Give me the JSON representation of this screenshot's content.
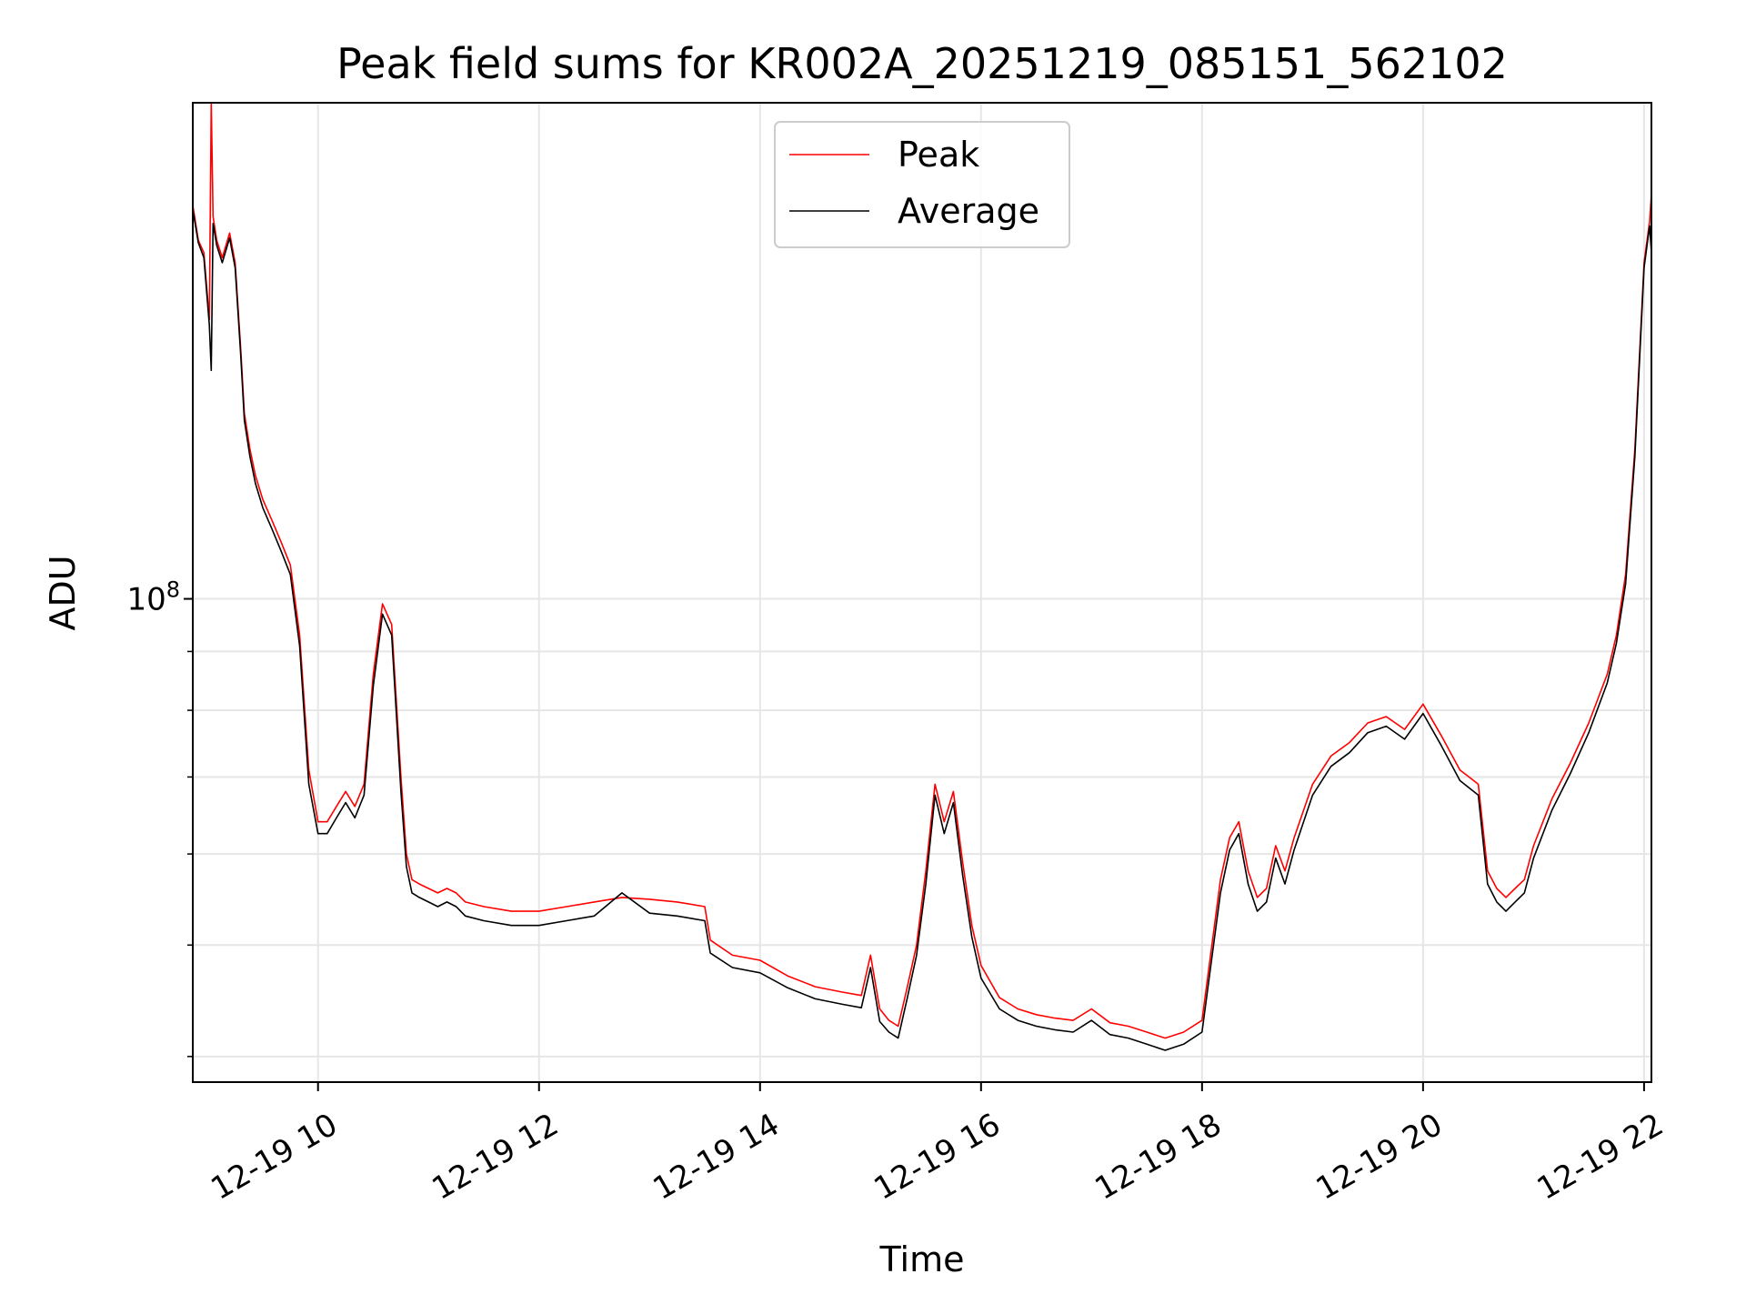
{
  "chart_data": {
    "type": "line",
    "title": "Peak field sums for KR002A_20251219_085151_562102",
    "xlabel": "Time",
    "ylabel": "ADU",
    "x_axis": {
      "kind": "time",
      "range": [
        "12-19 08:52",
        "12-19 22:04"
      ],
      "tick_labels": [
        "12-19 10",
        "12-19 12",
        "12-19 14",
        "12-19 16",
        "12-19 18",
        "12-19 20",
        "12-19 22"
      ],
      "tick_values": [
        "12-19 10:00",
        "12-19 12:00",
        "12-19 14:00",
        "12-19 16:00",
        "12-19 18:00",
        "12-19 20:00",
        "12-19 22:00"
      ],
      "tick_rotation_deg": 30
    },
    "y_axis": {
      "scale": "log",
      "range": [
        38000000,
        270000000
      ],
      "major_tick_labels": [
        {
          "value": 100000000,
          "base": "10",
          "exponent": "8"
        }
      ],
      "minor_ticks": [
        40000000,
        50000000,
        60000000,
        70000000,
        80000000,
        90000000
      ]
    },
    "grid": true,
    "legend_position": "upper center",
    "legend": [
      "Peak",
      "Average"
    ],
    "x": [
      "12-19 08:52",
      "12-19 08:55",
      "12-19 08:58",
      "12-19 09:01",
      "12-19 09:02",
      "12-19 09:03",
      "12-19 09:05",
      "12-19 09:08",
      "12-19 09:12",
      "12-19 09:15",
      "12-19 09:18",
      "12-19 09:20",
      "12-19 09:23",
      "12-19 09:26",
      "12-19 09:30",
      "12-19 09:35",
      "12-19 09:40",
      "12-19 09:45",
      "12-19 09:50",
      "12-19 09:55",
      "12-19 10:00",
      "12-19 10:05",
      "12-19 10:10",
      "12-19 10:15",
      "12-19 10:20",
      "12-19 10:25",
      "12-19 10:30",
      "12-19 10:35",
      "12-19 10:40",
      "12-19 10:45",
      "12-19 10:48",
      "12-19 10:51",
      "12-19 10:55",
      "12-19 11:00",
      "12-19 11:05",
      "12-19 11:10",
      "12-19 11:15",
      "12-19 11:20",
      "12-19 11:30",
      "12-19 11:45",
      "12-19 12:00",
      "12-19 12:15",
      "12-19 12:30",
      "12-19 12:45",
      "12-19 13:00",
      "12-19 13:15",
      "12-19 13:30",
      "12-19 13:33",
      "12-19 13:45",
      "12-19 14:00",
      "12-19 14:15",
      "12-19 14:30",
      "12-19 14:45",
      "12-19 14:55",
      "12-19 15:00",
      "12-19 15:05",
      "12-19 15:10",
      "12-19 15:15",
      "12-19 15:20",
      "12-19 15:25",
      "12-19 15:30",
      "12-19 15:35",
      "12-19 15:40",
      "12-19 15:45",
      "12-19 15:50",
      "12-19 15:55",
      "12-19 16:00",
      "12-19 16:10",
      "12-19 16:20",
      "12-19 16:30",
      "12-19 16:40",
      "12-19 16:50",
      "12-19 17:00",
      "12-19 17:10",
      "12-19 17:20",
      "12-19 17:30",
      "12-19 17:40",
      "12-19 17:50",
      "12-19 18:00",
      "12-19 18:10",
      "12-19 18:15",
      "12-19 18:20",
      "12-19 18:25",
      "12-19 18:30",
      "12-19 18:35",
      "12-19 18:40",
      "12-19 18:45",
      "12-19 18:50",
      "12-19 19:00",
      "12-19 19:10",
      "12-19 19:20",
      "12-19 19:30",
      "12-19 19:40",
      "12-19 19:50",
      "12-19 20:00",
      "12-19 20:10",
      "12-19 20:20",
      "12-19 20:25",
      "12-19 20:30",
      "12-19 20:35",
      "12-19 20:40",
      "12-19 20:45",
      "12-19 20:50",
      "12-19 20:55",
      "12-19 21:00",
      "12-19 21:10",
      "12-19 21:20",
      "12-19 21:30",
      "12-19 21:40",
      "12-19 21:45",
      "12-19 21:50",
      "12-19 21:55",
      "12-19 22:00",
      "12-19 22:03",
      "12-19 22:04"
    ],
    "series": [
      {
        "name": "Peak",
        "color": "#ff0000",
        "values": [
          220000000,
          205000000,
          200000000,
          175000000,
          270000000,
          215000000,
          205000000,
          198000000,
          208000000,
          196000000,
          165000000,
          145000000,
          135000000,
          128000000,
          122000000,
          117000000,
          112000000,
          107000000,
          93000000,
          71000000,
          64000000,
          64000000,
          66000000,
          68000000,
          66000000,
          69000000,
          86000000,
          99000000,
          95000000,
          70000000,
          60000000,
          57000000,
          56500000,
          56000000,
          55500000,
          56000000,
          55500000,
          54500000,
          54000000,
          53500000,
          53500000,
          54000000,
          54500000,
          55000000,
          54800000,
          54500000,
          54000000,
          50500000,
          49000000,
          48500000,
          47000000,
          46000000,
          45500000,
          45200000,
          49000000,
          44000000,
          43000000,
          42500000,
          46000000,
          50000000,
          58000000,
          69000000,
          64000000,
          68000000,
          59000000,
          52000000,
          48000000,
          45000000,
          44000000,
          43500000,
          43200000,
          43000000,
          44000000,
          42800000,
          42500000,
          42000000,
          41500000,
          42000000,
          43000000,
          57000000,
          62000000,
          64000000,
          58000000,
          55000000,
          56000000,
          61000000,
          58000000,
          62000000,
          69000000,
          73000000,
          75000000,
          78000000,
          79000000,
          77000000,
          81000000,
          76000000,
          71000000,
          70000000,
          69000000,
          58000000,
          56000000,
          55000000,
          56000000,
          57000000,
          61000000,
          67000000,
          72000000,
          78000000,
          86000000,
          93000000,
          105000000,
          135000000,
          196000000,
          213000000,
          225000000
        ]
      },
      {
        "name": "Average",
        "color": "#000000",
        "values": [
          218000000,
          204000000,
          198000000,
          173000000,
          158000000,
          212000000,
          203000000,
          196000000,
          206000000,
          194000000,
          163000000,
          143000000,
          133000000,
          126000000,
          120000000,
          115000000,
          110000000,
          105000000,
          91000000,
          69000000,
          62500000,
          62500000,
          64500000,
          66500000,
          64500000,
          67500000,
          84000000,
          97000000,
          93000000,
          68000000,
          58500000,
          55500000,
          55000000,
          54500000,
          54000000,
          54500000,
          54000000,
          53000000,
          52500000,
          52000000,
          52000000,
          52500000,
          53000000,
          55500000,
          53300000,
          53000000,
          52500000,
          49200000,
          47800000,
          47300000,
          45900000,
          44900000,
          44400000,
          44100000,
          47800000,
          42900000,
          42000000,
          41500000,
          45000000,
          49000000,
          56500000,
          67500000,
          62500000,
          66500000,
          57500000,
          50800000,
          46800000,
          44000000,
          43000000,
          42500000,
          42200000,
          42000000,
          43000000,
          41800000,
          41500000,
          41000000,
          40500000,
          41000000,
          42000000,
          55500000,
          60500000,
          62500000,
          56500000,
          53500000,
          54500000,
          59500000,
          56500000,
          60500000,
          67500000,
          71500000,
          73500000,
          76500000,
          77500000,
          75500000,
          79500000,
          74500000,
          69500000,
          68500000,
          67500000,
          56500000,
          54500000,
          53500000,
          54500000,
          55500000,
          59500000,
          65500000,
          70500000,
          76500000,
          84500000,
          91500000,
          103000000,
          133000000,
          194000000,
          211000000,
          200000000
        ]
      }
    ]
  }
}
